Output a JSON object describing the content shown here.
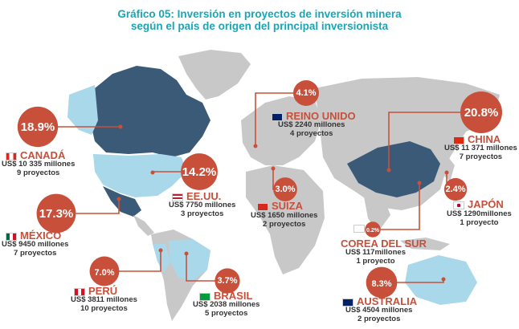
{
  "title_line1": "Gráfico 05: Inversión en proyectos de inversión minera",
  "title_line2": "según el país de origen del principal inversionista",
  "colors": {
    "bubble": "#c8503a",
    "highlight_dark": "#3b5a78",
    "highlight_light": "#a8d8ea",
    "land": "#c8c8c8",
    "title": "#1aa6b5"
  },
  "chart_data": {
    "type": "bubble-map",
    "title": "Gráfico 05: Inversión en proyectos de inversión minera según el país de origen del principal inversionista",
    "series": [
      {
        "country": "CANADÁ",
        "percent": "18.9%",
        "amount": "US$ 10 335 millones",
        "projects": "9 proyectos",
        "value": 18.9
      },
      {
        "country": "EE.UU.",
        "percent": "14.2%",
        "amount": "US$ 7750 millones",
        "projects": "3 proyectos",
        "value": 14.2
      },
      {
        "country": "MÉXICO",
        "percent": "17.3%",
        "amount": "US$ 9450 millones",
        "projects": "7 proyectos",
        "value": 17.3
      },
      {
        "country": "PERÚ",
        "percent": "7.0%",
        "amount": "US$ 3811 millones",
        "projects": "10 proyectos",
        "value": 7.0
      },
      {
        "country": "BRASIL",
        "percent": "3.7%",
        "amount": "US$ 2038 millones",
        "projects": "5 proyectos",
        "value": 3.7
      },
      {
        "country": "REINO UNIDO",
        "percent": "4.1%",
        "amount": "US$ 2240 millones",
        "projects": "4 proyectos",
        "value": 4.1
      },
      {
        "country": "SUIZA",
        "percent": "3.0%",
        "amount": "US$ 1650 millones",
        "projects": "2 proyectos",
        "value": 3.0
      },
      {
        "country": "CHINA",
        "percent": "20.8%",
        "amount": "US$ 11 371 millones",
        "projects": "7 proyectos",
        "value": 20.8
      },
      {
        "country": "JAPÓN",
        "percent": "2.4%",
        "amount": "US$ 1290millones",
        "projects": "1 proyecto",
        "value": 2.4
      },
      {
        "country": "COREA DEL SUR",
        "percent": "0.2%",
        "amount": "US$ 117millones",
        "projects": "1 proyecto",
        "value": 0.2
      },
      {
        "country": "AUSTRALIA",
        "percent": "8.3%",
        "amount": "US$ 4504 millones",
        "projects": "2 proyectos",
        "value": 8.3
      }
    ]
  }
}
